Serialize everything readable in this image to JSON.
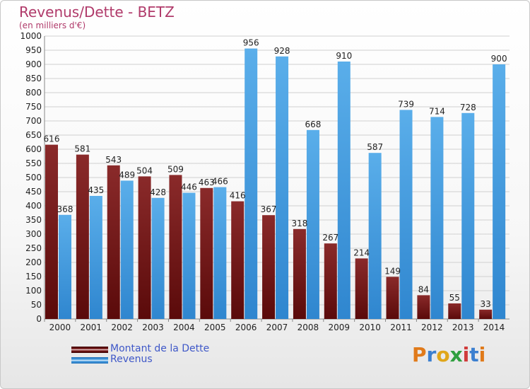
{
  "header": {
    "title": "Revenus/Dette - BETZ",
    "subtitle": "(en milliers d'€)"
  },
  "legend": {
    "items": [
      {
        "label": "Montant de la Dette",
        "color": "#7a1a1a"
      },
      {
        "label": "Revenus",
        "color": "#4a9ee0"
      }
    ]
  },
  "logo": {
    "text": "Proxiti",
    "letter_colors": [
      "#e07a1a",
      "#3b7fd0",
      "#e0a61a",
      "#2f9f3f",
      "#d03b3b",
      "#3b7fd0",
      "#e07a1a"
    ]
  },
  "chart_data": {
    "type": "bar",
    "title": "Revenus/Dette - BETZ",
    "subtitle": "(en milliers d'€)",
    "categories": [
      "2000",
      "2001",
      "2002",
      "2003",
      "2004",
      "2005",
      "2006",
      "2007",
      "2008",
      "2009",
      "2010",
      "2011",
      "2012",
      "2013",
      "2014"
    ],
    "series": [
      {
        "name": "Montant de la Dette",
        "color": "#7a1a1a",
        "values": [
          616,
          581,
          543,
          504,
          509,
          463,
          416,
          367,
          318,
          267,
          214,
          149,
          84,
          55,
          33
        ]
      },
      {
        "name": "Revenus",
        "color": "#4a9ee0",
        "values": [
          368,
          435,
          489,
          428,
          446,
          466,
          956,
          928,
          668,
          910,
          587,
          739,
          714,
          728,
          900
        ]
      }
    ],
    "ylim": [
      0,
      1000
    ],
    "ytick_step": 50,
    "grid": true,
    "legend_position": "bottom-left"
  }
}
